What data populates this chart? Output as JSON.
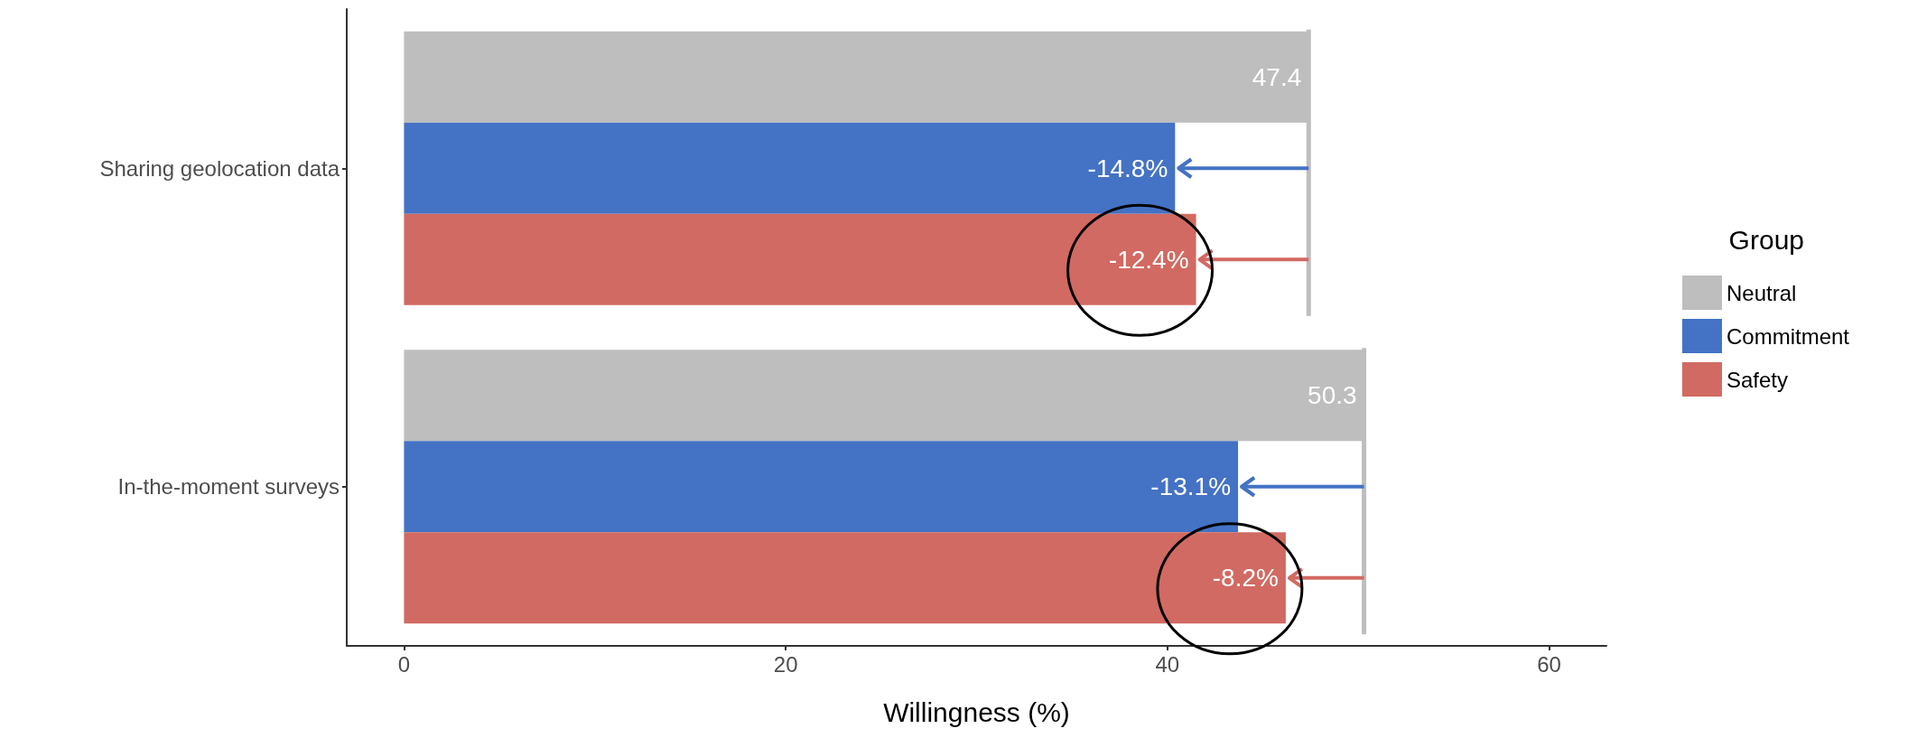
{
  "chart_data": {
    "type": "bar",
    "orientation": "horizontal",
    "xlabel": "Willingness (%)",
    "legend_title": "Group",
    "legend": "right",
    "categories": [
      "Sharing geolocation data",
      "In-the-moment surveys"
    ],
    "series": [
      {
        "name": "Neutral",
        "color": "#bebebe",
        "values": [
          47.4,
          50.3
        ],
        "value_labels": [
          "47.4",
          "50.3"
        ]
      },
      {
        "name": "Commitment",
        "color": "#4472c4",
        "values": [
          40.4,
          43.7
        ]
      },
      {
        "name": "Safety",
        "color": "#d16a62",
        "values": [
          41.5,
          46.2
        ]
      }
    ],
    "annotations": [
      {
        "text": "-14.8%",
        "x": 40.4,
        "y": "Sharing geolocation data"
      },
      "-12.4%",
      {
        "text": "-13.1%",
        "x": 43.7,
        "y": "In-the-moment surveys"
      },
      "-8.2%"
    ],
    "ref_lines": [
      {
        "axis": "x",
        "value": 47.4,
        "color": "#bebebe"
      },
      {
        "axis": "x",
        "value": 50.3,
        "color": "#bebebe"
      }
    ],
    "xlim": [
      -3,
      63
    ],
    "xticks": [
      0,
      20,
      40,
      60
    ],
    "grid": false
  }
}
